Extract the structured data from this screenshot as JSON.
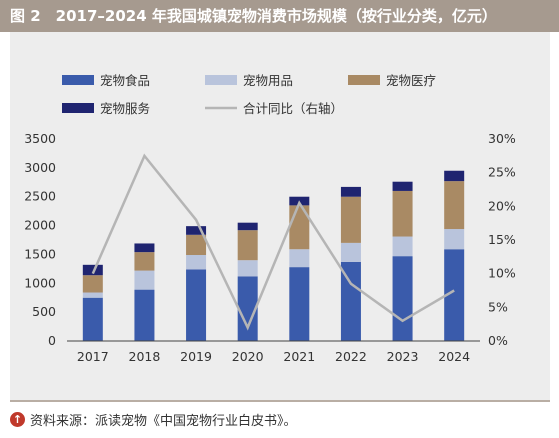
{
  "header": {
    "title": "图 2　2017–2024 年我国城镇宠物消费市场规模（按行业分类，亿元）"
  },
  "source": {
    "icon": "up-arrow-icon",
    "text": "资料来源：派读宠物《中国宠物行业白皮书》。"
  },
  "chart_data": {
    "type": "bar",
    "stacked": true,
    "categories": [
      "2017",
      "2018",
      "2019",
      "2020",
      "2021",
      "2022",
      "2023",
      "2024"
    ],
    "series": [
      {
        "name": "宠物食品",
        "color": "#3a5bab",
        "values": [
          750,
          890,
          1240,
          1120,
          1280,
          1370,
          1470,
          1590
        ]
      },
      {
        "name": "宠物用品",
        "color": "#b9c4dc",
        "values": [
          90,
          330,
          250,
          280,
          310,
          330,
          340,
          350
        ]
      },
      {
        "name": "宠物医疗",
        "color": "#a98a64",
        "values": [
          300,
          320,
          350,
          520,
          760,
          800,
          790,
          830
        ]
      },
      {
        "name": "宠物服务",
        "color": "#1f2470",
        "values": [
          180,
          150,
          150,
          130,
          150,
          170,
          160,
          180
        ]
      }
    ],
    "line": {
      "name": "合计同比（右轴）",
      "color": "#b5b5b5",
      "values": [
        10.0,
        27.5,
        18.0,
        2.0,
        20.5,
        8.5,
        3.0,
        7.5
      ]
    },
    "ylim": [
      0,
      3500
    ],
    "yticks": [
      "0",
      "500",
      "1000",
      "1500",
      "2000",
      "2500",
      "3000",
      "3500"
    ],
    "y2lim": [
      0,
      30
    ],
    "y2ticks": [
      "0%",
      "5%",
      "10%",
      "15%",
      "20%",
      "25%",
      "30%"
    ],
    "legend_position": "top-left",
    "grid": false
  }
}
